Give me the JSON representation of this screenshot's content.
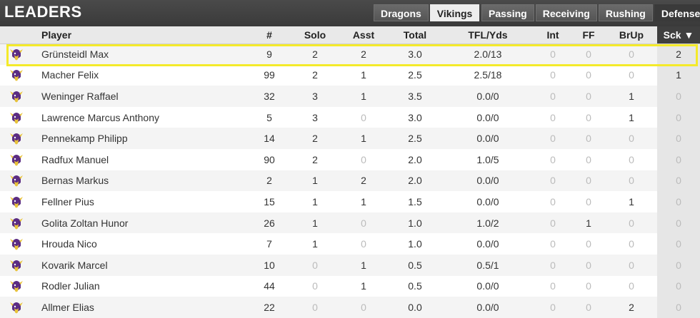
{
  "header": {
    "title": "LEADERS",
    "team_tabs": [
      {
        "label": "Dragons",
        "active": false
      },
      {
        "label": "Vikings",
        "active": true
      }
    ],
    "category_tabs": [
      {
        "label": "Passing",
        "active": false
      },
      {
        "label": "Receiving",
        "active": false
      },
      {
        "label": "Rushing",
        "active": false
      },
      {
        "label": "Defense",
        "active": true
      }
    ]
  },
  "table": {
    "columns": [
      "",
      "Player",
      "#",
      "Solo",
      "Asst",
      "Total",
      "TFL/Yds",
      "Int",
      "FF",
      "BrUp",
      "Sck ▼"
    ],
    "rows": [
      {
        "player": "Grünsteidl Max",
        "num": "9",
        "solo": "2",
        "asst": "2",
        "total": "3.0",
        "tfl": "2.0/13",
        "int": "0",
        "ff": "0",
        "brup": "0",
        "sck": "2"
      },
      {
        "player": "Macher Felix",
        "num": "99",
        "solo": "2",
        "asst": "1",
        "total": "2.5",
        "tfl": "2.5/18",
        "int": "0",
        "ff": "0",
        "brup": "0",
        "sck": "1"
      },
      {
        "player": "Weninger Raffael",
        "num": "32",
        "solo": "3",
        "asst": "1",
        "total": "3.5",
        "tfl": "0.0/0",
        "int": "0",
        "ff": "0",
        "brup": "1",
        "sck": "0"
      },
      {
        "player": "Lawrence Marcus Anthony",
        "num": "5",
        "solo": "3",
        "asst": "0",
        "total": "3.0",
        "tfl": "0.0/0",
        "int": "0",
        "ff": "0",
        "brup": "1",
        "sck": "0"
      },
      {
        "player": "Pennekamp Philipp",
        "num": "14",
        "solo": "2",
        "asst": "1",
        "total": "2.5",
        "tfl": "0.0/0",
        "int": "0",
        "ff": "0",
        "brup": "0",
        "sck": "0"
      },
      {
        "player": "Radfux Manuel",
        "num": "90",
        "solo": "2",
        "asst": "0",
        "total": "2.0",
        "tfl": "1.0/5",
        "int": "0",
        "ff": "0",
        "brup": "0",
        "sck": "0"
      },
      {
        "player": "Bernas Markus",
        "num": "2",
        "solo": "1",
        "asst": "2",
        "total": "2.0",
        "tfl": "0.0/0",
        "int": "0",
        "ff": "0",
        "brup": "0",
        "sck": "0"
      },
      {
        "player": "Fellner Pius",
        "num": "15",
        "solo": "1",
        "asst": "1",
        "total": "1.5",
        "tfl": "0.0/0",
        "int": "0",
        "ff": "0",
        "brup": "1",
        "sck": "0"
      },
      {
        "player": "Golita Zoltan Hunor",
        "num": "26",
        "solo": "1",
        "asst": "0",
        "total": "1.0",
        "tfl": "1.0/2",
        "int": "0",
        "ff": "1",
        "brup": "0",
        "sck": "0"
      },
      {
        "player": "Hrouda Nico",
        "num": "7",
        "solo": "1",
        "asst": "0",
        "total": "1.0",
        "tfl": "0.0/0",
        "int": "0",
        "ff": "0",
        "brup": "0",
        "sck": "0"
      },
      {
        "player": "Kovarik Marcel",
        "num": "10",
        "solo": "0",
        "asst": "1",
        "total": "0.5",
        "tfl": "0.5/1",
        "int": "0",
        "ff": "0",
        "brup": "0",
        "sck": "0"
      },
      {
        "player": "Rodler Julian",
        "num": "44",
        "solo": "0",
        "asst": "1",
        "total": "0.5",
        "tfl": "0.0/0",
        "int": "0",
        "ff": "0",
        "brup": "0",
        "sck": "0"
      },
      {
        "player": "Allmer Elias",
        "num": "22",
        "solo": "0",
        "asst": "0",
        "total": "0.0",
        "tfl": "0.0/0",
        "int": "0",
        "ff": "0",
        "brup": "2",
        "sck": "0"
      }
    ]
  },
  "colors": {
    "highlight_border": "#f4ea2a",
    "header_bg": "#3a3a3a",
    "zero_text": "#bbbbbb"
  },
  "icons": {
    "team_logo": "vikings-helmet-icon"
  }
}
